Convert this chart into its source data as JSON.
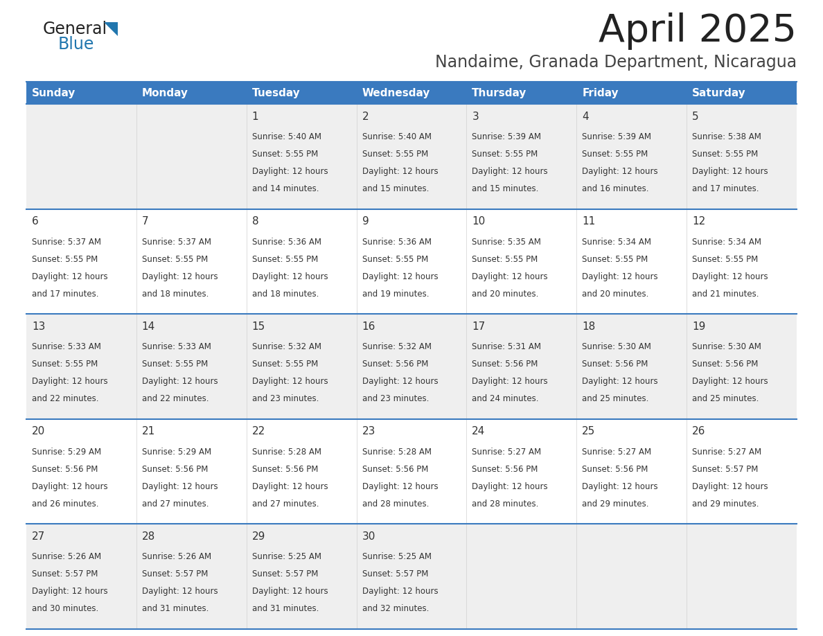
{
  "title": "April 2025",
  "subtitle": "Nandaime, Granada Department, Nicaragua",
  "header_bg_color": "#3a7abf",
  "header_text_color": "#ffffff",
  "days_of_week": [
    "Sunday",
    "Monday",
    "Tuesday",
    "Wednesday",
    "Thursday",
    "Friday",
    "Saturday"
  ],
  "row_bg_even": "#efefef",
  "row_bg_odd": "#ffffff",
  "separator_color": "#3a7abf",
  "text_color": "#333333",
  "title_color": "#222222",
  "subtitle_color": "#444444",
  "logo_general_color": "#222222",
  "logo_blue_color": "#2176ae",
  "logo_triangle_color": "#2176ae",
  "calendar_data": [
    {
      "day": 1,
      "col": 2,
      "row": 0,
      "sunrise": "5:40 AM",
      "sunset": "5:55 PM",
      "daylight_min": 14
    },
    {
      "day": 2,
      "col": 3,
      "row": 0,
      "sunrise": "5:40 AM",
      "sunset": "5:55 PM",
      "daylight_min": 15
    },
    {
      "day": 3,
      "col": 4,
      "row": 0,
      "sunrise": "5:39 AM",
      "sunset": "5:55 PM",
      "daylight_min": 15
    },
    {
      "day": 4,
      "col": 5,
      "row": 0,
      "sunrise": "5:39 AM",
      "sunset": "5:55 PM",
      "daylight_min": 16
    },
    {
      "day": 5,
      "col": 6,
      "row": 0,
      "sunrise": "5:38 AM",
      "sunset": "5:55 PM",
      "daylight_min": 17
    },
    {
      "day": 6,
      "col": 0,
      "row": 1,
      "sunrise": "5:37 AM",
      "sunset": "5:55 PM",
      "daylight_min": 17
    },
    {
      "day": 7,
      "col": 1,
      "row": 1,
      "sunrise": "5:37 AM",
      "sunset": "5:55 PM",
      "daylight_min": 18
    },
    {
      "day": 8,
      "col": 2,
      "row": 1,
      "sunrise": "5:36 AM",
      "sunset": "5:55 PM",
      "daylight_min": 18
    },
    {
      "day": 9,
      "col": 3,
      "row": 1,
      "sunrise": "5:36 AM",
      "sunset": "5:55 PM",
      "daylight_min": 19
    },
    {
      "day": 10,
      "col": 4,
      "row": 1,
      "sunrise": "5:35 AM",
      "sunset": "5:55 PM",
      "daylight_min": 20
    },
    {
      "day": 11,
      "col": 5,
      "row": 1,
      "sunrise": "5:34 AM",
      "sunset": "5:55 PM",
      "daylight_min": 20
    },
    {
      "day": 12,
      "col": 6,
      "row": 1,
      "sunrise": "5:34 AM",
      "sunset": "5:55 PM",
      "daylight_min": 21
    },
    {
      "day": 13,
      "col": 0,
      "row": 2,
      "sunrise": "5:33 AM",
      "sunset": "5:55 PM",
      "daylight_min": 22
    },
    {
      "day": 14,
      "col": 1,
      "row": 2,
      "sunrise": "5:33 AM",
      "sunset": "5:55 PM",
      "daylight_min": 22
    },
    {
      "day": 15,
      "col": 2,
      "row": 2,
      "sunrise": "5:32 AM",
      "sunset": "5:55 PM",
      "daylight_min": 23
    },
    {
      "day": 16,
      "col": 3,
      "row": 2,
      "sunrise": "5:32 AM",
      "sunset": "5:56 PM",
      "daylight_min": 23
    },
    {
      "day": 17,
      "col": 4,
      "row": 2,
      "sunrise": "5:31 AM",
      "sunset": "5:56 PM",
      "daylight_min": 24
    },
    {
      "day": 18,
      "col": 5,
      "row": 2,
      "sunrise": "5:30 AM",
      "sunset": "5:56 PM",
      "daylight_min": 25
    },
    {
      "day": 19,
      "col": 6,
      "row": 2,
      "sunrise": "5:30 AM",
      "sunset": "5:56 PM",
      "daylight_min": 25
    },
    {
      "day": 20,
      "col": 0,
      "row": 3,
      "sunrise": "5:29 AM",
      "sunset": "5:56 PM",
      "daylight_min": 26
    },
    {
      "day": 21,
      "col": 1,
      "row": 3,
      "sunrise": "5:29 AM",
      "sunset": "5:56 PM",
      "daylight_min": 27
    },
    {
      "day": 22,
      "col": 2,
      "row": 3,
      "sunrise": "5:28 AM",
      "sunset": "5:56 PM",
      "daylight_min": 27
    },
    {
      "day": 23,
      "col": 3,
      "row": 3,
      "sunrise": "5:28 AM",
      "sunset": "5:56 PM",
      "daylight_min": 28
    },
    {
      "day": 24,
      "col": 4,
      "row": 3,
      "sunrise": "5:27 AM",
      "sunset": "5:56 PM",
      "daylight_min": 28
    },
    {
      "day": 25,
      "col": 5,
      "row": 3,
      "sunrise": "5:27 AM",
      "sunset": "5:56 PM",
      "daylight_min": 29
    },
    {
      "day": 26,
      "col": 6,
      "row": 3,
      "sunrise": "5:27 AM",
      "sunset": "5:57 PM",
      "daylight_min": 29
    },
    {
      "day": 27,
      "col": 0,
      "row": 4,
      "sunrise": "5:26 AM",
      "sunset": "5:57 PM",
      "daylight_min": 30
    },
    {
      "day": 28,
      "col": 1,
      "row": 4,
      "sunrise": "5:26 AM",
      "sunset": "5:57 PM",
      "daylight_min": 31
    },
    {
      "day": 29,
      "col": 2,
      "row": 4,
      "sunrise": "5:25 AM",
      "sunset": "5:57 PM",
      "daylight_min": 31
    },
    {
      "day": 30,
      "col": 3,
      "row": 4,
      "sunrise": "5:25 AM",
      "sunset": "5:57 PM",
      "daylight_min": 32
    }
  ]
}
